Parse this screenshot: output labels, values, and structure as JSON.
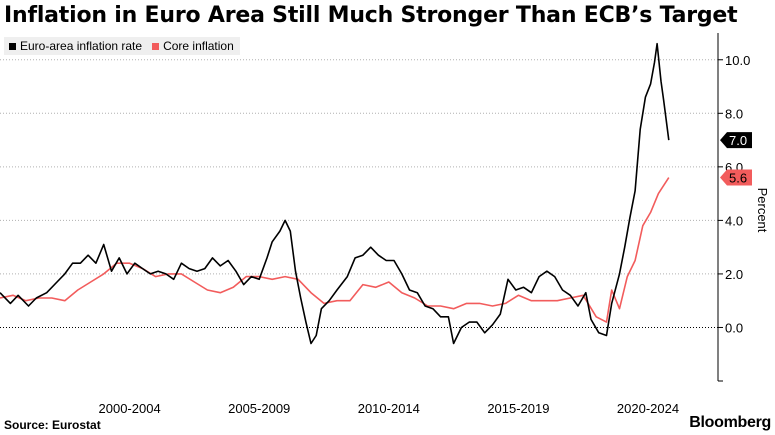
{
  "header": {
    "title": "Inflation in Euro Area Still Much Stronger Than ECB’s Target"
  },
  "footer": {
    "source": "Source: Eurostat",
    "brand": "Bloomberg"
  },
  "colors": {
    "headline": "#000000",
    "core": "#f25c5c",
    "grid": "#b0b0b0",
    "zero_line": "#000000"
  },
  "chart_data": {
    "type": "line",
    "xlabel": "",
    "ylabel": "Percent",
    "ylim": [
      -2,
      11
    ],
    "yticks": [
      -2,
      0,
      2,
      4,
      6,
      8,
      10
    ],
    "ytick_labels": [
      "",
      "0.0",
      "2.0",
      "4.0",
      "6.0",
      "8.0",
      "10.0"
    ],
    "xlim": [
      1997.5,
      2025.2
    ],
    "xtick_positions": [
      2002.5,
      2007.5,
      2012.5,
      2017.5,
      2022.5
    ],
    "xtick_labels": [
      "2000-2004",
      "2005-2009",
      "2010-2014",
      "2015-2019",
      "2020-2024"
    ],
    "grid": "horizontal-dotted",
    "legend": "top-left",
    "series": [
      {
        "name": "Euro-area inflation rate",
        "color": "#000000",
        "last_label": "7.0",
        "points": [
          [
            1997.5,
            1.3
          ],
          [
            1997.9,
            0.9
          ],
          [
            1998.2,
            1.2
          ],
          [
            1998.6,
            0.8
          ],
          [
            1998.9,
            1.1
          ],
          [
            1999.3,
            1.3
          ],
          [
            1999.7,
            1.7
          ],
          [
            2000.0,
            2.0
          ],
          [
            2000.3,
            2.4
          ],
          [
            2000.6,
            2.4
          ],
          [
            2000.9,
            2.7
          ],
          [
            2001.2,
            2.4
          ],
          [
            2001.5,
            3.1
          ],
          [
            2001.8,
            2.1
          ],
          [
            2002.1,
            2.6
          ],
          [
            2002.4,
            2.0
          ],
          [
            2002.7,
            2.4
          ],
          [
            2003.0,
            2.2
          ],
          [
            2003.3,
            2.0
          ],
          [
            2003.6,
            2.1
          ],
          [
            2003.9,
            2.0
          ],
          [
            2004.2,
            1.8
          ],
          [
            2004.5,
            2.4
          ],
          [
            2004.8,
            2.2
          ],
          [
            2005.1,
            2.1
          ],
          [
            2005.4,
            2.2
          ],
          [
            2005.7,
            2.6
          ],
          [
            2006.0,
            2.3
          ],
          [
            2006.3,
            2.5
          ],
          [
            2006.6,
            2.1
          ],
          [
            2006.9,
            1.6
          ],
          [
            2007.2,
            1.9
          ],
          [
            2007.5,
            1.8
          ],
          [
            2007.8,
            2.6
          ],
          [
            2008.0,
            3.2
          ],
          [
            2008.3,
            3.6
          ],
          [
            2008.5,
            4.0
          ],
          [
            2008.7,
            3.6
          ],
          [
            2008.9,
            2.1
          ],
          [
            2009.1,
            1.1
          ],
          [
            2009.3,
            0.2
          ],
          [
            2009.5,
            -0.6
          ],
          [
            2009.7,
            -0.3
          ],
          [
            2009.9,
            0.7
          ],
          [
            2010.2,
            1.0
          ],
          [
            2010.5,
            1.4
          ],
          [
            2010.9,
            1.9
          ],
          [
            2011.2,
            2.6
          ],
          [
            2011.5,
            2.7
          ],
          [
            2011.8,
            3.0
          ],
          [
            2012.1,
            2.7
          ],
          [
            2012.4,
            2.5
          ],
          [
            2012.7,
            2.5
          ],
          [
            2013.0,
            2.0
          ],
          [
            2013.3,
            1.4
          ],
          [
            2013.6,
            1.3
          ],
          [
            2013.9,
            0.8
          ],
          [
            2014.2,
            0.7
          ],
          [
            2014.5,
            0.4
          ],
          [
            2014.8,
            0.4
          ],
          [
            2015.0,
            -0.6
          ],
          [
            2015.3,
            0.0
          ],
          [
            2015.6,
            0.2
          ],
          [
            2015.9,
            0.2
          ],
          [
            2016.2,
            -0.2
          ],
          [
            2016.5,
            0.1
          ],
          [
            2016.8,
            0.5
          ],
          [
            2017.1,
            1.8
          ],
          [
            2017.4,
            1.4
          ],
          [
            2017.7,
            1.5
          ],
          [
            2018.0,
            1.3
          ],
          [
            2018.3,
            1.9
          ],
          [
            2018.6,
            2.1
          ],
          [
            2018.9,
            1.9
          ],
          [
            2019.2,
            1.4
          ],
          [
            2019.5,
            1.2
          ],
          [
            2019.8,
            0.8
          ],
          [
            2020.1,
            1.3
          ],
          [
            2020.3,
            0.3
          ],
          [
            2020.6,
            -0.2
          ],
          [
            2020.9,
            -0.3
          ],
          [
            2021.1,
            0.9
          ],
          [
            2021.4,
            2.0
          ],
          [
            2021.6,
            3.0
          ],
          [
            2021.8,
            4.1
          ],
          [
            2022.0,
            5.1
          ],
          [
            2022.2,
            7.4
          ],
          [
            2022.4,
            8.6
          ],
          [
            2022.6,
            9.1
          ],
          [
            2022.75,
            9.9
          ],
          [
            2022.85,
            10.6
          ],
          [
            2023.0,
            9.2
          ],
          [
            2023.1,
            8.5
          ],
          [
            2023.3,
            7.0
          ]
        ]
      },
      {
        "name": "Core inflation",
        "color": "#f25c5c",
        "last_label": "5.6",
        "points": [
          [
            1997.5,
            1.1
          ],
          [
            1998.0,
            1.2
          ],
          [
            1998.5,
            1.0
          ],
          [
            1999.0,
            1.1
          ],
          [
            1999.5,
            1.1
          ],
          [
            2000.0,
            1.0
          ],
          [
            2000.5,
            1.4
          ],
          [
            2001.0,
            1.7
          ],
          [
            2001.5,
            2.0
          ],
          [
            2002.0,
            2.4
          ],
          [
            2002.5,
            2.4
          ],
          [
            2003.0,
            2.2
          ],
          [
            2003.5,
            1.9
          ],
          [
            2004.0,
            2.0
          ],
          [
            2004.5,
            2.0
          ],
          [
            2005.0,
            1.7
          ],
          [
            2005.5,
            1.4
          ],
          [
            2006.0,
            1.3
          ],
          [
            2006.5,
            1.5
          ],
          [
            2007.0,
            1.9
          ],
          [
            2007.5,
            1.9
          ],
          [
            2008.0,
            1.8
          ],
          [
            2008.5,
            1.9
          ],
          [
            2009.0,
            1.8
          ],
          [
            2009.5,
            1.3
          ],
          [
            2010.0,
            0.9
          ],
          [
            2010.5,
            1.0
          ],
          [
            2011.0,
            1.0
          ],
          [
            2011.5,
            1.6
          ],
          [
            2012.0,
            1.5
          ],
          [
            2012.5,
            1.7
          ],
          [
            2013.0,
            1.3
          ],
          [
            2013.5,
            1.1
          ],
          [
            2014.0,
            0.8
          ],
          [
            2014.5,
            0.8
          ],
          [
            2015.0,
            0.7
          ],
          [
            2015.5,
            0.9
          ],
          [
            2016.0,
            0.9
          ],
          [
            2016.5,
            0.8
          ],
          [
            2017.0,
            0.9
          ],
          [
            2017.5,
            1.2
          ],
          [
            2018.0,
            1.0
          ],
          [
            2018.5,
            1.0
          ],
          [
            2019.0,
            1.0
          ],
          [
            2019.5,
            1.1
          ],
          [
            2020.0,
            1.2
          ],
          [
            2020.5,
            0.4
          ],
          [
            2020.9,
            0.2
          ],
          [
            2021.1,
            1.4
          ],
          [
            2021.4,
            0.7
          ],
          [
            2021.7,
            1.9
          ],
          [
            2022.0,
            2.5
          ],
          [
            2022.3,
            3.8
          ],
          [
            2022.6,
            4.3
          ],
          [
            2022.9,
            5.0
          ],
          [
            2023.1,
            5.3
          ],
          [
            2023.3,
            5.6
          ]
        ]
      }
    ]
  }
}
